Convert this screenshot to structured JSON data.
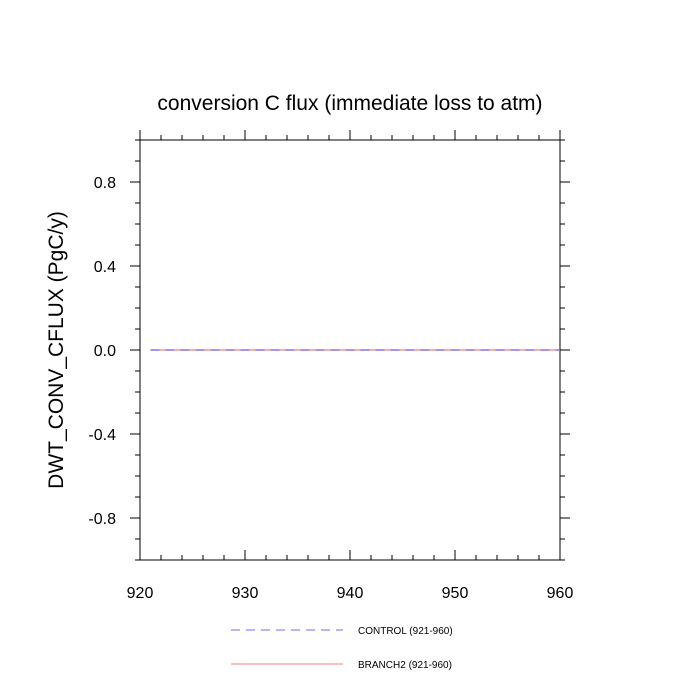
{
  "chart_data": {
    "type": "line",
    "title": "conversion C flux (immediate loss to atm)",
    "xlabel": "",
    "ylabel": "DWT_CONV_CFLUX  (PgC/y)",
    "xlim": [
      920,
      960
    ],
    "ylim": [
      -1.0,
      1.0
    ],
    "x_ticks": [
      920,
      930,
      940,
      950,
      960
    ],
    "x_tick_labels": [
      "920",
      "930",
      "940",
      "950",
      "960"
    ],
    "y_ticks": [
      -0.8,
      -0.4,
      0.0,
      0.4,
      0.8
    ],
    "y_tick_labels": [
      "-0.8",
      "-0.4",
      "0.0",
      "0.4",
      "0.8"
    ],
    "x": [
      921,
      960
    ],
    "series": [
      {
        "name": "CONTROL (921-960)",
        "values": [
          0.0,
          0.0
        ],
        "color": "#7b68ee",
        "style": "dashed"
      },
      {
        "name": "BRANCH2 (921-960)",
        "values": [
          0.0,
          0.0
        ],
        "color": "#f08080",
        "style": "solid"
      }
    ],
    "legend_position": "bottom",
    "grid": false
  }
}
